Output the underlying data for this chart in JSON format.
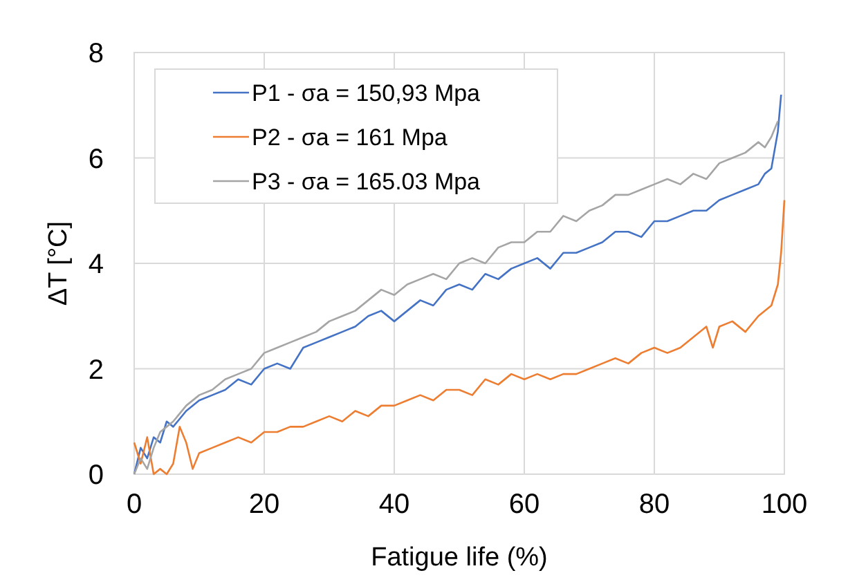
{
  "chart_data": {
    "type": "line",
    "xlabel": "Fatigue life (%)",
    "ylabel": "ΔT [°C]",
    "xlim": [
      0,
      100
    ],
    "xticks": [
      0,
      20,
      40,
      60,
      80,
      100
    ],
    "ylim": [
      0,
      8
    ],
    "yticks": [
      0,
      2,
      4,
      6,
      8
    ],
    "grid": true,
    "legend": "top left",
    "line_style": "solid",
    "series": [
      {
        "name": "P1 - σa = 150,93 Mpa",
        "color": "#4472c4",
        "x": [
          0,
          1,
          2,
          3,
          4,
          5,
          6,
          8,
          10,
          12,
          14,
          16,
          18,
          20,
          22,
          24,
          26,
          28,
          30,
          32,
          34,
          36,
          38,
          40,
          42,
          44,
          46,
          48,
          50,
          52,
          54,
          56,
          58,
          60,
          62,
          64,
          66,
          68,
          70,
          72,
          74,
          76,
          78,
          80,
          82,
          84,
          86,
          88,
          90,
          92,
          94,
          96,
          97,
          98,
          99,
          99.5
        ],
        "values": [
          0,
          0.5,
          0.3,
          0.7,
          0.6,
          1.0,
          0.9,
          1.2,
          1.4,
          1.5,
          1.6,
          1.8,
          1.7,
          2.0,
          2.1,
          2.0,
          2.4,
          2.5,
          2.6,
          2.7,
          2.8,
          3.0,
          3.1,
          2.9,
          3.1,
          3.3,
          3.2,
          3.5,
          3.6,
          3.5,
          3.8,
          3.7,
          3.9,
          4.0,
          4.1,
          3.9,
          4.2,
          4.2,
          4.3,
          4.4,
          4.6,
          4.6,
          4.5,
          4.8,
          4.8,
          4.9,
          5.0,
          5.0,
          5.2,
          5.3,
          5.4,
          5.5,
          5.7,
          5.8,
          6.5,
          7.2
        ]
      },
      {
        "name": "P2 - σa = 161 Mpa",
        "color": "#ed7d31",
        "x": [
          0,
          1,
          2,
          3,
          4,
          5,
          6,
          7,
          8,
          9,
          10,
          12,
          14,
          16,
          18,
          20,
          22,
          24,
          26,
          28,
          30,
          32,
          34,
          36,
          38,
          40,
          42,
          44,
          46,
          48,
          50,
          52,
          54,
          56,
          58,
          60,
          62,
          64,
          66,
          68,
          70,
          72,
          74,
          76,
          78,
          80,
          82,
          84,
          86,
          88,
          89,
          90,
          92,
          94,
          96,
          98,
          99,
          99.5,
          100
        ],
        "values": [
          0.6,
          0.2,
          0.7,
          0,
          0.1,
          0,
          0.2,
          0.9,
          0.6,
          0.1,
          0.4,
          0.5,
          0.6,
          0.7,
          0.6,
          0.8,
          0.8,
          0.9,
          0.9,
          1.0,
          1.1,
          1.0,
          1.2,
          1.1,
          1.3,
          1.3,
          1.4,
          1.5,
          1.4,
          1.6,
          1.6,
          1.5,
          1.8,
          1.7,
          1.9,
          1.8,
          1.9,
          1.8,
          1.9,
          1.9,
          2.0,
          2.1,
          2.2,
          2.1,
          2.3,
          2.4,
          2.3,
          2.4,
          2.6,
          2.8,
          2.4,
          2.8,
          2.9,
          2.7,
          3.0,
          3.2,
          3.6,
          4.2,
          5.2
        ]
      },
      {
        "name": "P3 - σa = 165.03 Mpa",
        "color": "#a5a5a5",
        "x": [
          0,
          1,
          2,
          3,
          4,
          5,
          6,
          8,
          10,
          12,
          14,
          16,
          18,
          20,
          22,
          24,
          26,
          28,
          30,
          32,
          34,
          36,
          38,
          40,
          42,
          44,
          46,
          48,
          50,
          52,
          54,
          56,
          58,
          60,
          62,
          64,
          66,
          68,
          70,
          72,
          74,
          76,
          78,
          80,
          82,
          84,
          86,
          88,
          90,
          92,
          94,
          96,
          97,
          98,
          99
        ],
        "values": [
          0,
          0.3,
          0.1,
          0.5,
          0.8,
          0.9,
          1.0,
          1.3,
          1.5,
          1.6,
          1.8,
          1.9,
          2.0,
          2.3,
          2.4,
          2.5,
          2.6,
          2.7,
          2.9,
          3.0,
          3.1,
          3.3,
          3.5,
          3.4,
          3.6,
          3.7,
          3.8,
          3.7,
          4.0,
          4.1,
          4.0,
          4.3,
          4.4,
          4.4,
          4.6,
          4.6,
          4.9,
          4.8,
          5.0,
          5.1,
          5.3,
          5.3,
          5.4,
          5.5,
          5.6,
          5.5,
          5.7,
          5.6,
          5.9,
          6.0,
          6.1,
          6.3,
          6.2,
          6.4,
          6.7
        ]
      }
    ]
  }
}
